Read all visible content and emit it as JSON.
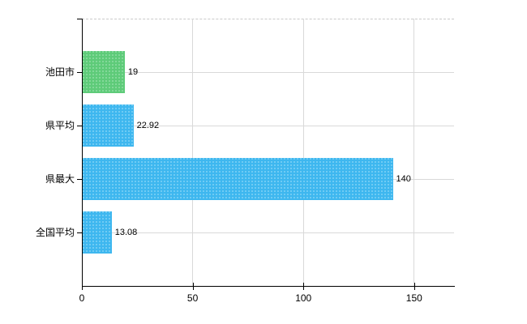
{
  "chart_data": {
    "type": "bar",
    "orientation": "horizontal",
    "title": "",
    "xlabel": "",
    "ylabel": "",
    "categories": [
      "池田市",
      "県平均",
      "県最大",
      "全国平均"
    ],
    "values": [
      19,
      22.92,
      140,
      13.08
    ],
    "value_labels": [
      "19",
      "22.92",
      "140",
      "13.08"
    ],
    "bar_colors": [
      "#5ecb79",
      "#3eb7ef",
      "#3eb7ef",
      "#3eb7ef"
    ],
    "bar_dot_colors": [
      "#8fdca4",
      "#7fd2f6",
      "#7fd2f6",
      "#7fd2f6"
    ],
    "x_ticks": [
      0,
      50,
      100,
      150
    ],
    "x_tick_labels": [
      "0",
      "50",
      "100",
      "150"
    ],
    "xlim": [
      0,
      168
    ],
    "grid": true,
    "legend": false,
    "background_color": "#ffffff",
    "axis_color": "#000000",
    "grid_color": "#d9d9d9",
    "top_border_style": "dashed",
    "text_color": "#000000"
  }
}
